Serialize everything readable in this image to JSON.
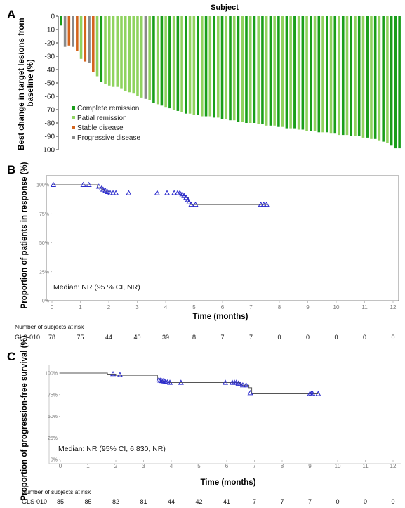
{
  "chart_data": [
    {
      "panel": "A",
      "type": "bar",
      "title": "Subject",
      "ylabel": "Best change in target lesions from baseline (%)",
      "ylim": [
        -100,
        0
      ],
      "yticks": [
        0,
        -10,
        -20,
        -30,
        -40,
        -50,
        -60,
        -70,
        -80,
        -90,
        -100
      ],
      "legend": {
        "placement": "bottom-left",
        "entries": [
          {
            "label": "Complete remission",
            "color": "#1a9e1a",
            "key": "CR"
          },
          {
            "label": "Patial remission",
            "color": "#8fd35f",
            "key": "PR"
          },
          {
            "label": "Stable disease",
            "color": "#d4641c",
            "key": "SD"
          },
          {
            "label": "Progressive disease",
            "color": "#8a8a8a",
            "key": "PD"
          }
        ]
      },
      "values": [
        -7,
        -23,
        -22,
        -23,
        -26,
        -32,
        -34,
        -35,
        -42,
        -45,
        -49,
        -51,
        -52,
        -53,
        -53,
        -54,
        -56,
        -57,
        -58,
        -60,
        -61,
        -62,
        -63,
        -65,
        -66,
        -67,
        -68,
        -69,
        -70,
        -71,
        -72,
        -73,
        -73,
        -74,
        -74,
        -75,
        -75,
        -75,
        -76,
        -76,
        -77,
        -77,
        -78,
        -78,
        -79,
        -79,
        -80,
        -80,
        -80,
        -81,
        -81,
        -82,
        -82,
        -82,
        -83,
        -83,
        -84,
        -84,
        -84,
        -85,
        -85,
        -86,
        -86,
        -86,
        -87,
        -87,
        -87,
        -88,
        -88,
        -89,
        -89,
        -89,
        -90,
        -90,
        -90,
        -91,
        -91,
        -92,
        -92,
        -93,
        -94,
        -95,
        -97,
        -99,
        -99
      ],
      "categories_status": [
        "CR",
        "PD",
        "SD",
        "PD",
        "SD",
        "PR",
        "SD",
        "PD",
        "SD",
        "PR",
        "CR",
        "PR",
        "PR",
        "PR",
        "PR",
        "PR",
        "PR",
        "PR",
        "PR",
        "PR",
        "PR",
        "PD",
        "PR",
        "CR",
        "PR",
        "CR",
        "PR",
        "CR",
        "PR",
        "CR",
        "PR",
        "CR",
        "PR",
        "PR",
        "CR",
        "PR",
        "CR",
        "PR",
        "CR",
        "PR",
        "CR",
        "PR",
        "CR",
        "PR",
        "CR",
        "PR",
        "CR",
        "PR",
        "CR",
        "PR",
        "CR",
        "PR",
        "CR",
        "PR",
        "CR",
        "PR",
        "CR",
        "PR",
        "CR",
        "PR",
        "CR",
        "PR",
        "CR",
        "PR",
        "CR",
        "PR",
        "CR",
        "PR",
        "CR",
        "PR",
        "CR",
        "PR",
        "CR",
        "PR",
        "CR",
        "PR",
        "CR",
        "PR",
        "CR",
        "PR",
        "CR",
        "PR",
        "CR",
        "CR",
        "CR"
      ]
    },
    {
      "panel": "B",
      "type": "line",
      "subtype": "kaplan-meier",
      "xlabel": "Time (months)",
      "ylabel": "Proportion of patients in response (%)",
      "xlim": [
        0,
        12
      ],
      "ylim": [
        0,
        100
      ],
      "xticks": [
        0,
        1,
        2,
        3,
        4,
        5,
        6,
        7,
        8,
        9,
        10,
        11,
        12
      ],
      "yticks": [
        0,
        25,
        50,
        75,
        100
      ],
      "ytick_labels": [
        "0%",
        "25%",
        "50%",
        "75%",
        "100%"
      ],
      "annotation": "Median: NR (95 % CI, NR)",
      "curve": [
        [
          0,
          100
        ],
        [
          1.6,
          100
        ],
        [
          1.6,
          97.5
        ],
        [
          1.75,
          97.5
        ],
        [
          1.75,
          96
        ],
        [
          1.85,
          96
        ],
        [
          1.85,
          94.5
        ],
        [
          2.0,
          94.5
        ],
        [
          2.0,
          93
        ],
        [
          4.55,
          93
        ],
        [
          4.55,
          91
        ],
        [
          4.7,
          91
        ],
        [
          4.7,
          89
        ],
        [
          4.8,
          89
        ],
        [
          4.8,
          86
        ],
        [
          4.85,
          86
        ],
        [
          4.85,
          83
        ],
        [
          7.55,
          83
        ]
      ],
      "censored": [
        [
          0.05,
          100
        ],
        [
          1.1,
          100
        ],
        [
          1.3,
          100
        ],
        [
          1.65,
          98.5
        ],
        [
          1.75,
          97
        ],
        [
          1.8,
          96
        ],
        [
          1.88,
          95
        ],
        [
          1.95,
          94
        ],
        [
          2.05,
          93
        ],
        [
          2.15,
          93
        ],
        [
          2.25,
          93
        ],
        [
          2.7,
          93
        ],
        [
          3.7,
          93
        ],
        [
          4.05,
          93
        ],
        [
          4.3,
          93
        ],
        [
          4.42,
          93
        ],
        [
          4.5,
          93
        ],
        [
          4.58,
          92
        ],
        [
          4.65,
          90.5
        ],
        [
          4.72,
          89
        ],
        [
          4.78,
          87
        ],
        [
          4.82,
          85
        ],
        [
          4.9,
          83
        ],
        [
          5.05,
          83
        ],
        [
          7.35,
          83
        ],
        [
          7.45,
          83
        ],
        [
          7.55,
          83
        ]
      ],
      "risk_table": {
        "header": "Number of subjects at risk",
        "row_label": "GLS-010",
        "values": [
          "78",
          "75",
          "44",
          "40",
          "39",
          "8",
          "7",
          "7",
          "0",
          "0",
          "0",
          "0",
          "0"
        ]
      }
    },
    {
      "panel": "C",
      "type": "line",
      "subtype": "kaplan-meier",
      "xlabel": "Time (months)",
      "ylabel": "Proportion of progression-free survival (%)",
      "xlim": [
        0,
        12
      ],
      "ylim": [
        0,
        100
      ],
      "xticks": [
        0,
        1,
        2,
        3,
        4,
        5,
        6,
        7,
        8,
        9,
        10,
        11,
        12
      ],
      "yticks": [
        0,
        25,
        50,
        75,
        100
      ],
      "ytick_labels": [
        "0%",
        "25%",
        "50%",
        "75%",
        "100%"
      ],
      "annotation": "Median: NR (95% CI, 6.830, NR)",
      "curve": [
        [
          0,
          100
        ],
        [
          1.7,
          100
        ],
        [
          1.7,
          98.8
        ],
        [
          2.0,
          98.8
        ],
        [
          2.0,
          97.5
        ],
        [
          3.5,
          97.5
        ],
        [
          3.5,
          93
        ],
        [
          3.6,
          93
        ],
        [
          3.6,
          91
        ],
        [
          3.7,
          91
        ],
        [
          3.7,
          90
        ],
        [
          3.9,
          90
        ],
        [
          3.9,
          89
        ],
        [
          6.5,
          89
        ],
        [
          6.5,
          86
        ],
        [
          6.8,
          86
        ],
        [
          6.8,
          83
        ],
        [
          6.9,
          83
        ],
        [
          6.9,
          76
        ],
        [
          9.3,
          76
        ]
      ],
      "censored": [
        [
          1.9,
          99
        ],
        [
          2.15,
          98
        ],
        [
          3.55,
          92
        ],
        [
          3.6,
          91.5
        ],
        [
          3.65,
          91
        ],
        [
          3.7,
          91
        ],
        [
          3.75,
          90.5
        ],
        [
          3.8,
          90
        ],
        [
          3.87,
          89.5
        ],
        [
          3.95,
          89
        ],
        [
          4.35,
          89
        ],
        [
          5.95,
          89
        ],
        [
          6.2,
          89
        ],
        [
          6.28,
          89
        ],
        [
          6.35,
          89
        ],
        [
          6.42,
          88
        ],
        [
          6.5,
          87
        ],
        [
          6.58,
          86
        ],
        [
          6.7,
          86
        ],
        [
          6.85,
          77
        ],
        [
          9.0,
          76
        ],
        [
          9.05,
          76
        ],
        [
          9.1,
          76
        ],
        [
          9.3,
          76
        ]
      ],
      "risk_table": {
        "header": "Number of subjects at risk",
        "row_label": "GLS-010",
        "values": [
          "85",
          "85",
          "82",
          "81",
          "44",
          "42",
          "41",
          "7",
          "7",
          "7",
          "0",
          "0",
          "0"
        ]
      }
    }
  ],
  "panel_labels": [
    "A",
    "B",
    "C"
  ],
  "colors": {
    "km_line": "#555555",
    "censor": "#2c2ccc"
  }
}
